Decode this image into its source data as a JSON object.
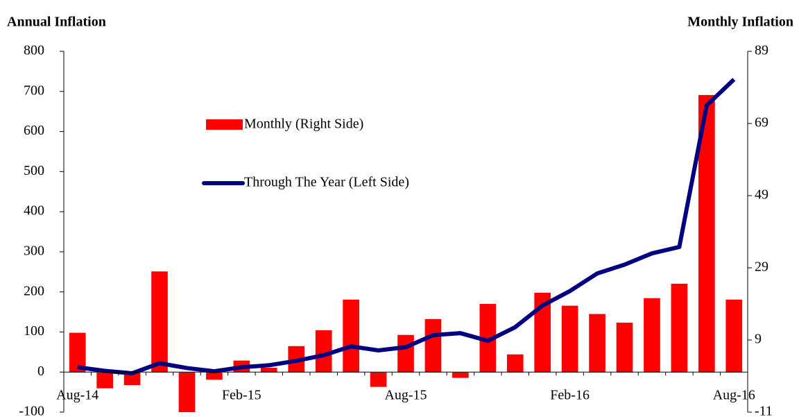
{
  "chart_data": {
    "type": "bar",
    "y_label": "Annual Inflation",
    "y2_label": "Monthly Inflation",
    "categories": [
      "Aug-14",
      null,
      null,
      null,
      null,
      null,
      "Feb-15",
      null,
      null,
      null,
      null,
      null,
      "Aug-15",
      null,
      null,
      null,
      null,
      null,
      "Feb-16",
      null,
      null,
      null,
      null,
      null,
      "Aug-16"
    ],
    "series": [
      {
        "name": "Monthly (Right Side)",
        "type": "bar",
        "axis": "y2",
        "color": "#ff0000",
        "values": [
          11,
          -4.4,
          -3.5,
          28,
          -11,
          -2,
          3.3,
          1.3,
          7.3,
          11.7,
          20.2,
          -4,
          10.4,
          14.8,
          -1.5,
          19,
          5,
          22.1,
          18.5,
          16.2,
          13.8,
          20.6,
          24.6,
          76.9,
          20.2
        ]
      },
      {
        "name": "Through The Year (Left Side)",
        "type": "line",
        "color": "#000080",
        "values": [
          12,
          3,
          -3,
          22,
          10,
          2,
          12,
          17,
          28,
          42,
          64,
          54,
          62,
          92,
          97,
          78,
          112,
          166,
          202,
          246,
          268,
          296,
          312,
          665,
          730
        ]
      }
    ],
    "ylim": [
      -100,
      800
    ],
    "yticks": [
      -100,
      0,
      100,
      200,
      300,
      400,
      500,
      600,
      700,
      800
    ],
    "y2lim": [
      -11,
      89
    ],
    "y2ticks": [
      -11,
      9,
      29,
      49,
      69,
      89
    ]
  }
}
